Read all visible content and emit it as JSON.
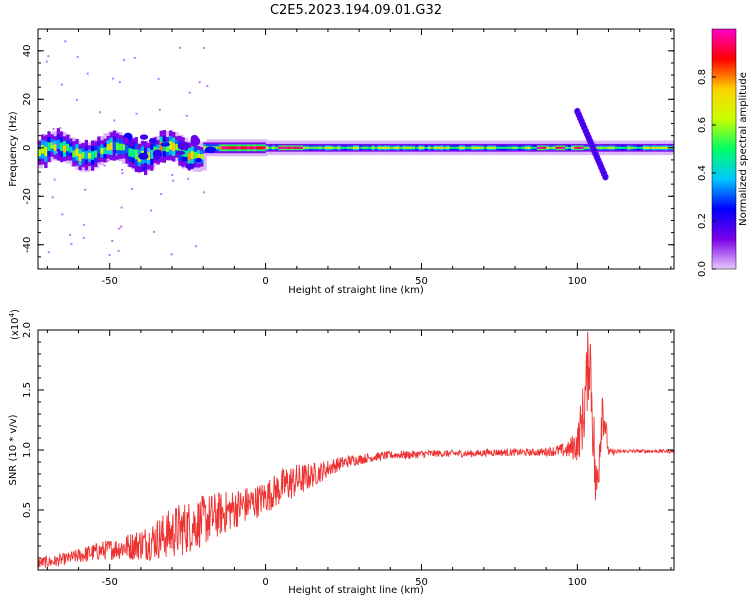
{
  "title": "C2E5.2023.194.09.01.G32",
  "chart_data": [
    {
      "type": "heatmap",
      "xlabel": "Height of straight line (km)",
      "ylabel": "Frequency (Hz)",
      "xlim": [
        -73,
        131
      ],
      "ylim": [
        -50,
        49
      ],
      "xticks": [
        "-50",
        "0",
        "50",
        "100"
      ],
      "yticks": [
        "-40",
        "-20",
        "0",
        "20",
        "40"
      ],
      "grid": false,
      "colorbar": {
        "label": "Normalized spectral amplitude",
        "range": [
          0,
          1
        ],
        "ticks": [
          "0.0",
          "0.2",
          "0.4",
          "0.6",
          "0.8"
        ],
        "colormap": [
          "#e8c8ff",
          "#7a00e6",
          "#0000ff",
          "#00c8ff",
          "#00ff64",
          "#c8ff00",
          "#ffd200",
          "#ff0000",
          "#ff00c8"
        ]
      },
      "features": {
        "carrier_line_hz": 0,
        "secondary_tone": {
          "x_start": 100,
          "x_end": 109,
          "y_start": 15,
          "y_end": -12
        }
      }
    },
    {
      "type": "line",
      "xlabel": "Height of straight line (km)",
      "ylabel": "SNR (10 * v/v)",
      "ymultiplier": "(x10",
      "ymultiplier_exp": "4",
      "xlim": [
        -73,
        131
      ],
      "ylim": [
        0,
        20000
      ],
      "xticks": [
        "-50",
        "0",
        "50",
        "100"
      ],
      "yticks": [
        "0.5",
        "1.0",
        "1.5",
        "2.0"
      ],
      "grid": false,
      "series": [
        {
          "color": "#ee3333",
          "x": [
            -73,
            -68,
            -63,
            -58,
            -53,
            -48,
            -43,
            -38,
            -33,
            -28,
            -23,
            -18,
            -13,
            -8,
            -3,
            2,
            7,
            12,
            17,
            22,
            27,
            32,
            37,
            42,
            47,
            52,
            57,
            62,
            67,
            72,
            77,
            82,
            87,
            92,
            97,
            100,
            102,
            104,
            106,
            108,
            110,
            115,
            120,
            125,
            131
          ],
          "y": [
            600,
            700,
            1000,
            1300,
            1600,
            1800,
            2000,
            2300,
            2800,
            3300,
            3800,
            4300,
            4800,
            5300,
            5700,
            6400,
            7200,
            7600,
            8100,
            8700,
            9100,
            9300,
            9500,
            9600,
            9600,
            9700,
            9700,
            9700,
            9700,
            9800,
            9800,
            9800,
            9800,
            9900,
            10000,
            10500,
            13000,
            18500,
            6000,
            14000,
            9800,
            9900,
            9900,
            9900,
            9900
          ],
          "noise": [
            500,
            500,
            500,
            700,
            800,
            900,
            1200,
            1500,
            1900,
            2300,
            2200,
            2100,
            1800,
            1600,
            1400,
            1400,
            1600,
            1300,
            900,
            650,
            500,
            400,
            350,
            350,
            350,
            300,
            300,
            300,
            300,
            300,
            300,
            300,
            300,
            400,
            700,
            1500,
            3000,
            3500,
            3500,
            2500,
            300,
            150,
            150,
            150,
            150
          ]
        }
      ]
    }
  ]
}
